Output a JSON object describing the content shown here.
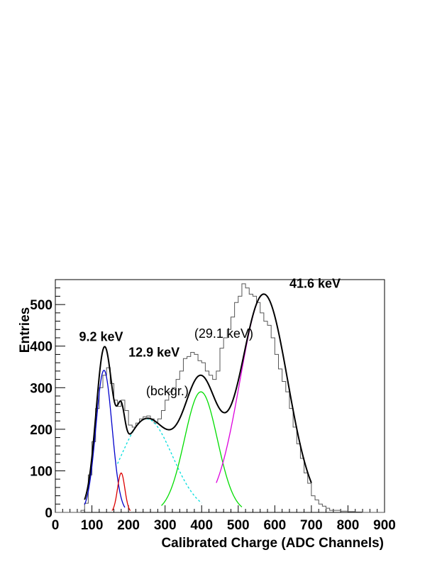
{
  "chart_data": {
    "type": "line",
    "xlabel": "Calibrated Charge (ADC Channels)",
    "ylabel": "Entries",
    "xlim": [
      0,
      900
    ],
    "ylim": [
      0,
      560
    ],
    "x_ticks": [
      "0",
      "100",
      "200",
      "300",
      "400",
      "500",
      "600",
      "700",
      "800",
      "900"
    ],
    "y_ticks": [
      "0",
      "100",
      "200",
      "300",
      "400",
      "500"
    ],
    "grid": false,
    "annotations": [
      {
        "text": "9.2 keV",
        "x": 65,
        "y": 412,
        "bold": true
      },
      {
        "text": "12.9 keV",
        "x": 200,
        "y": 375,
        "bold": true
      },
      {
        "text": "(bckgr.)",
        "x": 248,
        "y": 282,
        "bold": false
      },
      {
        "text": "(29.1 keV)",
        "x": 380,
        "y": 420,
        "bold": false
      },
      {
        "text": "41.6 keV",
        "x": 640,
        "y": 540,
        "bold": true
      }
    ],
    "histogram": {
      "bin_width": 10,
      "bins_x": [
        0,
        10,
        20,
        30,
        40,
        50,
        60,
        70,
        80,
        90,
        100,
        110,
        120,
        130,
        140,
        150,
        160,
        170,
        180,
        190,
        200,
        210,
        220,
        230,
        240,
        250,
        260,
        270,
        280,
        290,
        300,
        310,
        320,
        330,
        340,
        350,
        360,
        370,
        380,
        390,
        400,
        410,
        420,
        430,
        440,
        450,
        460,
        470,
        480,
        490,
        500,
        510,
        520,
        530,
        540,
        550,
        560,
        570,
        580,
        590,
        600,
        610,
        620,
        630,
        640,
        650,
        660,
        670,
        680,
        690,
        700,
        710,
        720,
        730,
        740,
        750,
        760,
        770,
        780,
        790,
        800,
        810,
        820,
        830,
        840,
        850,
        860,
        870,
        880,
        890
      ],
      "counts": [
        0,
        0,
        0,
        0,
        0,
        0,
        0,
        5,
        22,
        90,
        170,
        250,
        300,
        330,
        348,
        310,
        270,
        255,
        270,
        245,
        210,
        205,
        215,
        225,
        230,
        232,
        225,
        215,
        225,
        245,
        270,
        290,
        300,
        320,
        340,
        370,
        375,
        385,
        380,
        365,
        360,
        340,
        330,
        320,
        340,
        395,
        420,
        440,
        470,
        505,
        520,
        550,
        540,
        525,
        520,
        505,
        480,
        460,
        450,
        420,
        380,
        345,
        315,
        290,
        250,
        205,
        165,
        130,
        95,
        70,
        40,
        30,
        20,
        15,
        10,
        5,
        5,
        5,
        3,
        3,
        2,
        2,
        1,
        1,
        0,
        0,
        0,
        0,
        0,
        0
      ]
    },
    "series": [
      {
        "name": "9.2 keV",
        "color": "#0000cc",
        "mu": 133,
        "sigma": 22,
        "amp": 342,
        "range": [
          80,
          190
        ]
      },
      {
        "name": "12.9 keV",
        "color": "#dd0000",
        "mu": 180,
        "sigma": 10,
        "amp": 95,
        "range": [
          155,
          205
        ]
      },
      {
        "name": "(bckgr.)",
        "color": "#00dddd",
        "dashed": true,
        "mu": 250,
        "sigma": 70,
        "amp": 225,
        "range": [
          170,
          400
        ]
      },
      {
        "name": "(29.1 keV)",
        "color": "#00dd00",
        "mu": 398,
        "sigma": 45,
        "amp": 290,
        "range": [
          290,
          510
        ]
      },
      {
        "name": "41.6 keV",
        "color": "#dd00dd",
        "mu": 570,
        "sigma": 65,
        "amp": 525,
        "range": [
          440,
          690
        ]
      },
      {
        "name": "total fit",
        "color": "#000000",
        "sum": true,
        "range": [
          80,
          700
        ]
      }
    ]
  }
}
